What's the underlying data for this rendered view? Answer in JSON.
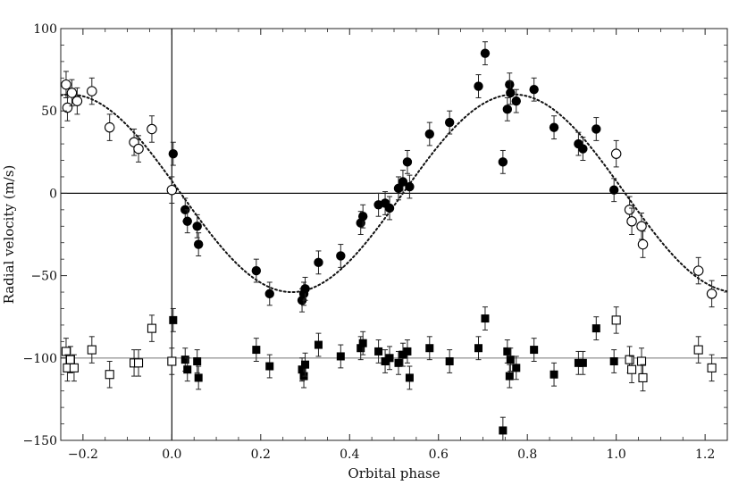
{
  "chart_data": {
    "type": "scatter",
    "xlabel": "Orbital phase",
    "ylabel": "Radial velocity (m/s)",
    "xlim": [
      -0.25,
      1.25
    ],
    "ylim": [
      -150,
      100
    ],
    "x_ticks": [
      -0.2,
      0.0,
      0.2,
      0.4,
      0.6,
      0.8,
      1.0,
      1.2
    ],
    "x_tick_labels": [
      "−0.2",
      "0.0",
      "0.2",
      "0.4",
      "0.6",
      "0.8",
      "1.0",
      "1.2"
    ],
    "y_ticks": [
      -150,
      -100,
      -50,
      0,
      50,
      100
    ],
    "y_tick_labels": [
      "−150",
      "−100",
      "−50",
      "0",
      "50",
      "100"
    ],
    "grid": false,
    "reference_lines": {
      "y": [
        0,
        -100
      ],
      "x": [
        0.0
      ]
    },
    "model_curve": {
      "style": "dotted",
      "amplitude": 60,
      "offset": 0,
      "min_phase": 0.27
    },
    "series": [
      {
        "marker": "filled-circle",
        "points": [
          [
            0.003,
            24,
            7
          ],
          [
            0.03,
            -10,
            7
          ],
          [
            0.035,
            -17,
            7
          ],
          [
            0.057,
            -20,
            7
          ],
          [
            0.06,
            -31,
            7
          ],
          [
            0.19,
            -47,
            7
          ],
          [
            0.22,
            -61,
            7
          ],
          [
            0.293,
            -65,
            7
          ],
          [
            0.297,
            -61,
            7
          ],
          [
            0.3,
            -58,
            7
          ],
          [
            0.33,
            -42,
            7
          ],
          [
            0.38,
            -38,
            7
          ],
          [
            0.425,
            -18,
            7
          ],
          [
            0.43,
            -14,
            7
          ],
          [
            0.465,
            -7,
            7
          ],
          [
            0.48,
            -6,
            7
          ],
          [
            0.49,
            -9,
            7
          ],
          [
            0.51,
            3,
            7
          ],
          [
            0.52,
            7,
            7
          ],
          [
            0.53,
            19,
            7
          ],
          [
            0.535,
            4,
            7
          ],
          [
            0.58,
            36,
            7
          ],
          [
            0.625,
            43,
            7
          ],
          [
            0.69,
            65,
            7
          ],
          [
            0.705,
            85,
            7
          ],
          [
            0.745,
            19,
            7
          ],
          [
            0.755,
            51,
            7
          ],
          [
            0.76,
            66,
            7
          ],
          [
            0.762,
            61,
            7
          ],
          [
            0.775,
            56,
            7
          ],
          [
            0.815,
            63,
            7
          ],
          [
            0.86,
            40,
            7
          ],
          [
            0.915,
            30,
            7
          ],
          [
            0.925,
            27,
            7
          ],
          [
            0.955,
            39,
            7
          ],
          [
            0.995,
            2,
            7
          ]
        ]
      },
      {
        "marker": "open-circle",
        "points": [
          [
            -0.238,
            66,
            8
          ],
          [
            -0.235,
            52,
            8
          ],
          [
            -0.225,
            61,
            8
          ],
          [
            -0.213,
            56,
            8
          ],
          [
            -0.18,
            62,
            8
          ],
          [
            -0.14,
            40,
            8
          ],
          [
            -0.085,
            31,
            8
          ],
          [
            -0.075,
            27,
            8
          ],
          [
            -0.045,
            39,
            8
          ],
          [
            0.0,
            2,
            8
          ],
          [
            1.0,
            24,
            8
          ],
          [
            1.03,
            -10,
            8
          ],
          [
            1.035,
            -17,
            8
          ],
          [
            1.057,
            -20,
            8
          ],
          [
            1.06,
            -31,
            8
          ],
          [
            1.185,
            -47,
            8
          ],
          [
            1.215,
            -61,
            8
          ]
        ]
      },
      {
        "marker": "filled-square",
        "points": [
          [
            0.003,
            -77,
            7
          ],
          [
            0.03,
            -101,
            7
          ],
          [
            0.035,
            -107,
            7
          ],
          [
            0.057,
            -102,
            7
          ],
          [
            0.06,
            -112,
            7
          ],
          [
            0.19,
            -95,
            7
          ],
          [
            0.22,
            -105,
            7
          ],
          [
            0.293,
            -107,
            7
          ],
          [
            0.297,
            -111,
            7
          ],
          [
            0.3,
            -104,
            7
          ],
          [
            0.33,
            -92,
            7
          ],
          [
            0.38,
            -99,
            7
          ],
          [
            0.425,
            -94,
            7
          ],
          [
            0.43,
            -91,
            7
          ],
          [
            0.465,
            -96,
            7
          ],
          [
            0.48,
            -102,
            7
          ],
          [
            0.49,
            -100,
            7
          ],
          [
            0.51,
            -103,
            7
          ],
          [
            0.52,
            -98,
            7
          ],
          [
            0.53,
            -96,
            7
          ],
          [
            0.535,
            -112,
            7
          ],
          [
            0.58,
            -94,
            7
          ],
          [
            0.625,
            -102,
            7
          ],
          [
            0.69,
            -94,
            7
          ],
          [
            0.705,
            -76,
            7
          ],
          [
            0.745,
            -144,
            8
          ],
          [
            0.755,
            -96,
            7
          ],
          [
            0.76,
            -111,
            7
          ],
          [
            0.762,
            -101,
            7
          ],
          [
            0.775,
            -106,
            7
          ],
          [
            0.815,
            -95,
            7
          ],
          [
            0.86,
            -110,
            7
          ],
          [
            0.915,
            -103,
            7
          ],
          [
            0.925,
            -103,
            7
          ],
          [
            0.955,
            -82,
            7
          ],
          [
            0.995,
            -102,
            7
          ]
        ]
      },
      {
        "marker": "open-square",
        "points": [
          [
            -0.238,
            -96,
            8
          ],
          [
            -0.235,
            -106,
            8
          ],
          [
            -0.228,
            -101,
            8
          ],
          [
            -0.22,
            -106,
            8
          ],
          [
            -0.18,
            -95,
            8
          ],
          [
            -0.14,
            -110,
            8
          ],
          [
            -0.085,
            -103,
            8
          ],
          [
            -0.075,
            -103,
            8
          ],
          [
            -0.045,
            -82,
            8
          ],
          [
            0.0,
            -102,
            8
          ],
          [
            1.0,
            -77,
            8
          ],
          [
            1.03,
            -101,
            8
          ],
          [
            1.035,
            -107,
            8
          ],
          [
            1.057,
            -102,
            8
          ],
          [
            1.06,
            -112,
            8
          ],
          [
            1.185,
            -95,
            8
          ],
          [
            1.215,
            -106,
            8
          ]
        ]
      }
    ]
  }
}
